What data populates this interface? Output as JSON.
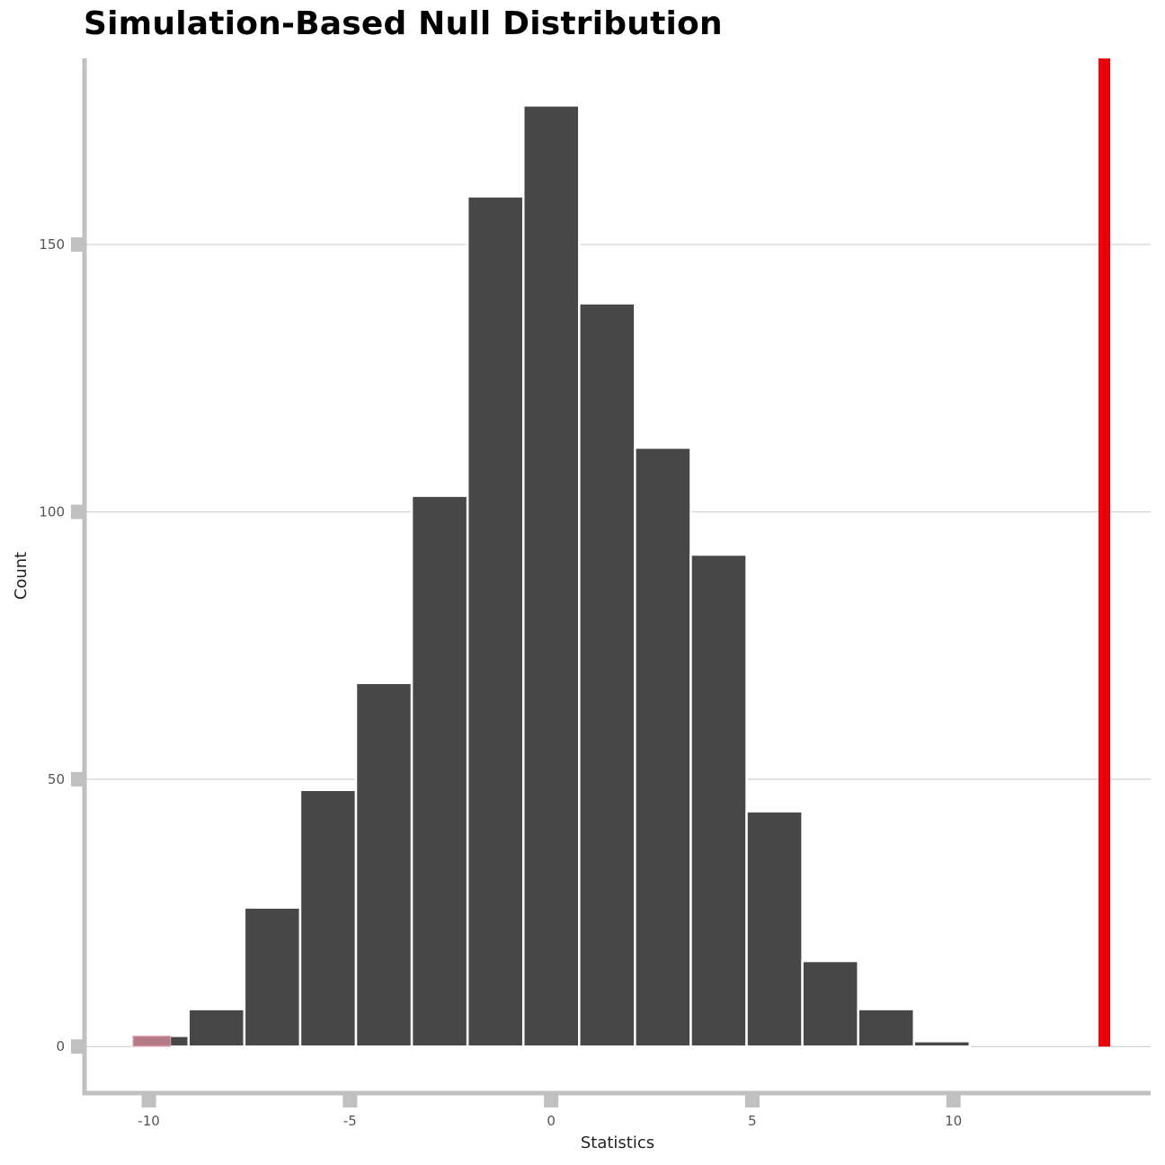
{
  "chart_data": {
    "type": "bar",
    "title": "Simulation-Based Null Distribution",
    "xlabel": "Statistics",
    "ylabel": "Count",
    "xlim": [
      -11.6,
      14.9
    ],
    "ylim": [
      -8.7,
      184.8
    ],
    "grid": true,
    "xticks": [
      -10,
      -5,
      0,
      5,
      10
    ],
    "xtick_labels": [
      "-10",
      "-5",
      "0",
      "5",
      "10"
    ],
    "yticks": [
      0,
      50,
      100,
      150
    ],
    "ytick_labels": [
      "0",
      "50",
      "100",
      "150"
    ],
    "bin_width": 1.387,
    "bin_start": -10.4,
    "values": [
      2,
      7,
      26,
      48,
      68,
      103,
      159,
      176,
      139,
      112,
      92,
      44,
      16,
      7,
      1
    ],
    "shaded_region": {
      "from": -10.4,
      "to": -9.46,
      "color": "#c08090"
    },
    "observed_statistic": 13.75,
    "colors": {
      "bar": "#474747",
      "bar_outline": "#ffffff",
      "observed_line": "#e8000b",
      "axis": "#c0c0c0",
      "grid": "#c8c8c8"
    }
  }
}
